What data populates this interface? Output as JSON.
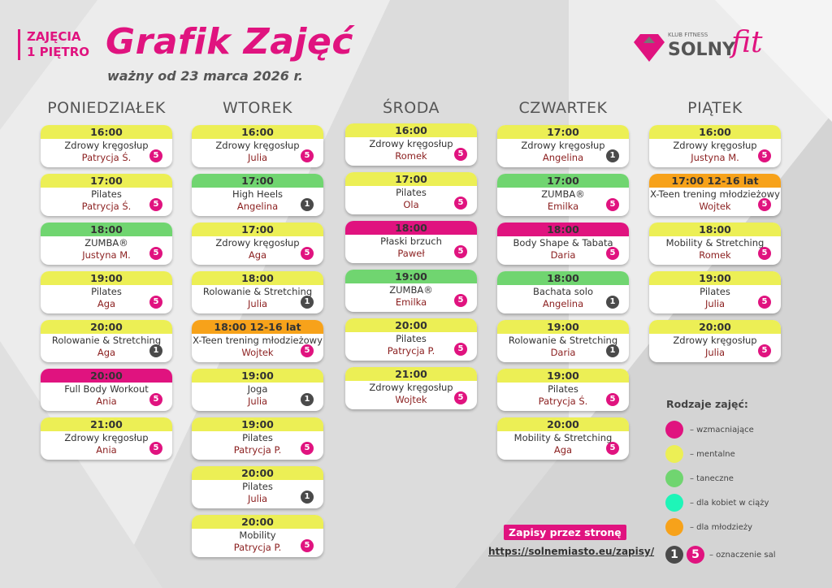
{
  "header": {
    "floor_line1": "ZAJĘCIA",
    "floor_line2": "1 PIĘTRO",
    "title": "Grafik Zajęć",
    "subtitle": "ważny od 23 marca 2026 r."
  },
  "logo": {
    "klub": "KLUB FITNESS",
    "solny": "SOLNY",
    "fit": "fit"
  },
  "colors": {
    "wzmacniajace": "#e0137f",
    "mentalne": "#ecef55",
    "taneczne": "#70d570",
    "ciaza": "#1ef5b8",
    "mlodziez": "#f7a21a",
    "sala1": "#4a4a4a",
    "sala5": "#e0137f"
  },
  "days": [
    {
      "name": "PONIEDZIAŁEK",
      "classes": [
        {
          "time": "16:00",
          "name": "Zdrowy kręgosłup",
          "trainer": "Patrycja Ś.",
          "type": "mentalne",
          "room": "5"
        },
        {
          "time": "17:00",
          "name": "Pilates",
          "trainer": "Patrycja Ś.",
          "type": "mentalne",
          "room": "5"
        },
        {
          "time": "18:00",
          "name": "ZUMBA®",
          "trainer": "Justyna M.",
          "type": "taneczne",
          "room": "5"
        },
        {
          "time": "19:00",
          "name": "Pilates",
          "trainer": "Aga",
          "type": "mentalne",
          "room": "5"
        },
        {
          "time": "20:00",
          "name": "Rolowanie & Stretching",
          "trainer": "Aga",
          "type": "mentalne",
          "room": "1"
        },
        {
          "time": "20:00",
          "name": "Full Body Workout",
          "trainer": "Ania",
          "type": "wzmacniajace",
          "room": "5"
        },
        {
          "time": "21:00",
          "name": "Zdrowy kręgosłup",
          "trainer": "Ania",
          "type": "mentalne",
          "room": "5"
        }
      ]
    },
    {
      "name": "WTOREK",
      "classes": [
        {
          "time": "16:00",
          "name": "Zdrowy kręgosłup",
          "trainer": "Julia",
          "type": "mentalne",
          "room": "5"
        },
        {
          "time": "17:00",
          "name": "High Heels",
          "trainer": "Angelina",
          "type": "taneczne",
          "room": "1"
        },
        {
          "time": "17:00",
          "name": "Zdrowy kręgosłup",
          "trainer": "Aga",
          "type": "mentalne",
          "room": "5"
        },
        {
          "time": "18:00",
          "name": "Rolowanie & Stretching",
          "trainer": "Julia",
          "type": "mentalne",
          "room": "1"
        },
        {
          "time": "18:00 12-16 lat",
          "name": "X-Teen trening młodzieżowy",
          "trainer": "Wojtek",
          "type": "mlodziez",
          "room": "5"
        },
        {
          "time": "19:00",
          "name": "Joga",
          "trainer": "Julia",
          "type": "mentalne",
          "room": "1"
        },
        {
          "time": "19:00",
          "name": "Pilates",
          "trainer": "Patrycja P.",
          "type": "mentalne",
          "room": "5"
        },
        {
          "time": "20:00",
          "name": "Pilates",
          "trainer": "Julia",
          "type": "mentalne",
          "room": "1"
        },
        {
          "time": "20:00",
          "name": "Mobility",
          "trainer": "Patrycja P.",
          "type": "mentalne",
          "room": "5"
        }
      ]
    },
    {
      "name": "ŚRODA",
      "classes": [
        {
          "time": "16:00",
          "name": "Zdrowy kręgosłup",
          "trainer": "Romek",
          "type": "mentalne",
          "room": "5"
        },
        {
          "time": "17:00",
          "name": "Pilates",
          "trainer": "Ola",
          "type": "mentalne",
          "room": "5"
        },
        {
          "time": "18:00",
          "name": "Płaski brzuch",
          "trainer": "Paweł",
          "type": "wzmacniajace",
          "room": "5"
        },
        {
          "time": "19:00",
          "name": "ZUMBA®",
          "trainer": "Emilka",
          "type": "taneczne",
          "room": "5"
        },
        {
          "time": "20:00",
          "name": "Pilates",
          "trainer": "Patrycja P.",
          "type": "mentalne",
          "room": "5"
        },
        {
          "time": "21:00",
          "name": "Zdrowy kręgosłup",
          "trainer": "Wojtek",
          "type": "mentalne",
          "room": "5"
        }
      ]
    },
    {
      "name": "CZWARTEK",
      "classes": [
        {
          "time": "17:00",
          "name": "Zdrowy kręgosłup",
          "trainer": "Angelina",
          "type": "mentalne",
          "room": "1"
        },
        {
          "time": "17:00",
          "name": "ZUMBA®",
          "trainer": "Emilka",
          "type": "taneczne",
          "room": "5"
        },
        {
          "time": "18:00",
          "name": "Body Shape & Tabata",
          "trainer": "Daria",
          "type": "wzmacniajace",
          "room": "5"
        },
        {
          "time": "18:00",
          "name": "Bachata solo",
          "trainer": "Angelina",
          "type": "taneczne",
          "room": "1"
        },
        {
          "time": "19:00",
          "name": "Rolowanie & Stretching",
          "trainer": "Daria",
          "type": "mentalne",
          "room": "1"
        },
        {
          "time": "19:00",
          "name": "Pilates",
          "trainer": "Patrycja Ś.",
          "type": "mentalne",
          "room": "5"
        },
        {
          "time": "20:00",
          "name": "Mobility & Stretching",
          "trainer": "Aga",
          "type": "mentalne",
          "room": "5"
        }
      ]
    },
    {
      "name": "PIĄTEK",
      "classes": [
        {
          "time": "16:00",
          "name": "Zdrowy kręgosłup",
          "trainer": "Justyna M.",
          "type": "mentalne",
          "room": "5"
        },
        {
          "time": "17:00 12-16 lat",
          "name": "X-Teen trening młodzieżowy",
          "trainer": "Wojtek",
          "type": "mlodziez",
          "room": "5"
        },
        {
          "time": "18:00",
          "name": "Mobility & Stretching",
          "trainer": "Romek",
          "type": "mentalne",
          "room": "5"
        },
        {
          "time": "19:00",
          "name": "Pilates",
          "trainer": "Julia",
          "type": "mentalne",
          "room": "5"
        },
        {
          "time": "20:00",
          "name": "Zdrowy kręgosłup",
          "trainer": "Julia",
          "type": "mentalne",
          "room": "5"
        }
      ]
    }
  ],
  "legend": {
    "title": "Rodzaje zajęć:",
    "items": [
      {
        "type": "wzmacniajace",
        "label": "–  wzmacniające"
      },
      {
        "type": "mentalne",
        "label": "–  mentalne"
      },
      {
        "type": "taneczne",
        "label": "– taneczne"
      },
      {
        "type": "ciaza",
        "label": "– dla kobiet w ciąży"
      },
      {
        "type": "mlodziez",
        "label": "– dla młodzieży"
      }
    ],
    "room1": "1",
    "room5": "5",
    "rooms_label": "– oznaczenie sal"
  },
  "signup": {
    "label": "Zapisy przez stronę",
    "url": "https://solnemiasto.eu/zapisy/"
  }
}
